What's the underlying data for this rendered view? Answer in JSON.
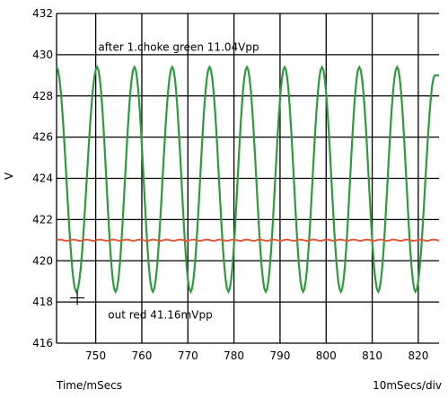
{
  "chart_data": {
    "type": "line",
    "title": "",
    "xlabel": "Time/mSecs",
    "ylabel": "V",
    "x_div_label": "10mSecs/div",
    "xlim": [
      741.5,
      824.5
    ],
    "ylim": [
      416,
      432
    ],
    "x_ticks": [
      750,
      760,
      770,
      780,
      790,
      800,
      810,
      820
    ],
    "y_ticks": [
      416,
      418,
      420,
      422,
      424,
      426,
      428,
      430,
      432
    ],
    "grid": true,
    "annotations": [
      {
        "text": "after 1.choke green 11.04Vpp",
        "x": 768,
        "y": 430.2
      },
      {
        "text": "out red  41.16mVpp",
        "x": 764,
        "y": 417.2
      }
    ],
    "cursor": {
      "x": 746,
      "y": 418.2
    },
    "series": [
      {
        "color": "#2e9a3e",
        "waveform": "sine",
        "x": [
          741.5,
          745.8,
          750.3,
          754.3,
          758.4,
          762.4,
          766.6,
          770.6,
          774.7,
          778.8,
          782.8,
          786.9,
          791.0,
          795.0,
          799.1,
          803.2,
          807.2,
          811.3,
          815.4,
          819.4,
          823.6,
          824.5
        ],
        "y": [
          429.4,
          418.5,
          429.4,
          418.5,
          429.4,
          418.5,
          429.4,
          418.5,
          429.4,
          418.5,
          429.4,
          418.5,
          429.4,
          418.5,
          429.4,
          418.5,
          429.4,
          418.5,
          429.4,
          418.5,
          429.0,
          429.0
        ]
      },
      {
        "color": "#e05a3c",
        "waveform": "flat",
        "x": [
          741.5,
          824.5
        ],
        "y": [
          421.0,
          421.0
        ]
      }
    ]
  }
}
